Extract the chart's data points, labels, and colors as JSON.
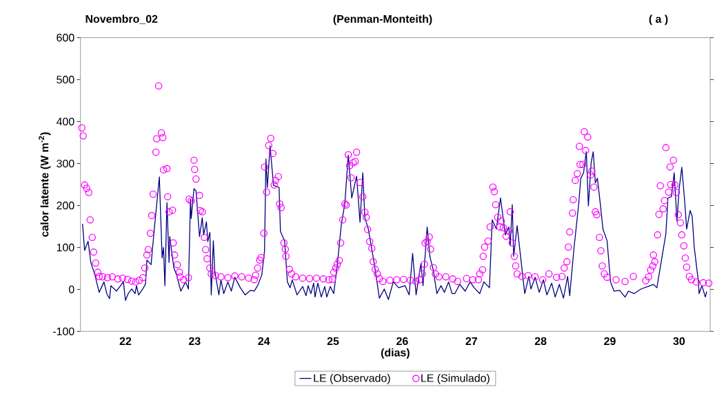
{
  "chart_data": {
    "type": "line",
    "title": "Novembro_02",
    "subtitle": "(Penman-Monteith)",
    "annotations": [
      "( a )"
    ],
    "xlabel": "(dias)",
    "ylabel": "calor latente (W m$^{-2}$)",
    "xlim": [
      21.35,
      30.45
    ],
    "xticks": [
      22,
      23,
      24,
      25,
      26,
      27,
      28,
      29,
      30
    ],
    "ylim": [
      -100,
      600
    ],
    "yticks": [
      -100,
      0,
      100,
      200,
      300,
      400,
      500,
      600
    ],
    "legend": "bottom",
    "line_style": "solid",
    "series": [
      {
        "name": "LE (Observado)",
        "color": "#000080",
        "x": [
          21.38,
          21.41,
          21.46,
          21.5,
          21.56,
          21.62,
          21.69,
          21.73,
          21.77,
          21.79,
          21.87,
          21.97,
          22.0,
          22.04,
          22.09,
          22.14,
          22.16,
          22.19,
          22.25,
          22.29,
          22.31,
          22.37,
          22.42,
          22.49,
          22.53,
          22.55,
          22.57,
          22.6,
          22.63,
          22.64,
          22.7,
          22.74,
          22.8,
          22.87,
          22.91,
          22.94,
          22.95,
          22.99,
          23.02,
          23.07,
          23.11,
          23.13,
          23.17,
          23.19,
          23.22,
          23.24,
          23.27,
          23.29,
          23.35,
          23.38,
          23.42,
          23.48,
          23.53,
          23.58,
          23.66,
          23.73,
          23.81,
          23.86,
          23.91,
          23.97,
          24.01,
          24.03,
          24.05,
          24.09,
          24.14,
          24.22,
          24.24,
          24.3,
          24.34,
          24.38,
          24.41,
          24.48,
          24.56,
          24.61,
          24.64,
          24.68,
          24.72,
          24.74,
          24.78,
          24.83,
          24.88,
          24.91,
          24.96,
          25.01,
          25.06,
          25.12,
          25.17,
          25.22,
          25.27,
          25.34,
          25.39,
          25.43,
          25.46,
          25.51,
          25.59,
          25.67,
          25.74,
          25.8,
          25.87,
          25.95,
          26.04,
          26.1,
          26.15,
          26.2,
          26.27,
          26.3,
          26.36,
          26.4,
          26.45,
          26.5,
          26.56,
          26.61,
          26.67,
          26.72,
          26.76,
          26.83,
          26.91,
          26.98,
          27.04,
          27.12,
          27.18,
          27.26,
          27.3,
          27.36,
          27.42,
          27.49,
          27.54,
          27.56,
          27.59,
          27.61,
          27.66,
          27.72,
          27.77,
          27.83,
          27.86,
          27.92,
          27.98,
          28.04,
          28.09,
          28.16,
          28.21,
          28.27,
          28.33,
          28.39,
          28.42,
          28.48,
          28.55,
          28.58,
          28.62,
          28.66,
          28.69,
          28.73,
          28.76,
          28.79,
          28.82,
          28.86,
          28.9,
          28.96,
          29.01,
          29.06,
          29.14,
          29.22,
          29.27,
          29.35,
          29.45,
          29.55,
          29.63,
          29.68,
          29.71,
          29.81,
          29.84,
          29.89,
          29.93,
          29.97,
          30.0,
          30.04,
          30.08,
          30.11,
          30.16,
          30.19,
          30.22,
          30.28,
          30.29,
          30.33,
          30.38,
          30.4
        ],
        "values": [
          156,
          93,
          115,
          64,
          34,
          -7,
          18,
          -10,
          -22,
          9,
          -4,
          18,
          -26,
          -10,
          1,
          -10,
          9,
          -13,
          1,
          13,
          70,
          59,
          149,
          268,
          75,
          100,
          9,
          207,
          64,
          126,
          51,
          34,
          -4,
          18,
          1,
          215,
          169,
          240,
          235,
          126,
          171,
          130,
          161,
          114,
          136,
          -13,
          116,
          45,
          -13,
          23,
          -10,
          18,
          -4,
          29,
          4,
          -13,
          -2,
          -4,
          9,
          34,
          92,
          311,
          243,
          342,
          248,
          243,
          138,
          116,
          18,
          4,
          23,
          -13,
          7,
          -15,
          9,
          -10,
          15,
          -18,
          15,
          -18,
          7,
          -18,
          7,
          -10,
          56,
          155,
          204,
          320,
          218,
          270,
          160,
          278,
          171,
          144,
          67,
          -21,
          1,
          -24,
          18,
          4,
          9,
          -13,
          86,
          -13,
          62,
          9,
          149,
          78,
          45,
          -10,
          9,
          -7,
          18,
          -10,
          -10,
          12,
          -4,
          18,
          4,
          -10,
          18,
          4,
          166,
          144,
          218,
          130,
          149,
          105,
          202,
          79,
          152,
          64,
          -10,
          31,
          1,
          29,
          -7,
          23,
          -13,
          15,
          -18,
          12,
          -21,
          31,
          -15,
          95,
          204,
          265,
          278,
          328,
          199,
          303,
          328,
          254,
          265,
          207,
          144,
          116,
          18,
          -4,
          -2,
          -18,
          -4,
          -10,
          1,
          7,
          12,
          4,
          34,
          133,
          218,
          221,
          278,
          163,
          237,
          291,
          213,
          144,
          188,
          174,
          100,
          18,
          -10,
          9,
          -18,
          -5
        ]
      },
      {
        "name": "LE (Simulado)",
        "type": "scatter",
        "marker": "circle",
        "color": "#ff00ff",
        "x": [
          21.37,
          21.39,
          21.41,
          21.44,
          21.47,
          21.49,
          21.52,
          21.54,
          21.57,
          21.6,
          21.62,
          21.67,
          21.74,
          21.81,
          21.89,
          21.96,
          22.03,
          22.09,
          22.15,
          22.2,
          22.25,
          22.28,
          22.31,
          22.33,
          22.36,
          22.38,
          22.4,
          22.44,
          22.45,
          22.48,
          22.52,
          22.54,
          22.55,
          22.6,
          22.61,
          22.63,
          22.68,
          22.69,
          22.71,
          22.75,
          22.78,
          22.79,
          22.84,
          22.91,
          22.92,
          22.95,
          22.99,
          23.0,
          23.02,
          23.07,
          23.08,
          23.11,
          23.14,
          23.16,
          23.18,
          23.22,
          23.24,
          23.3,
          23.38,
          23.48,
          23.58,
          23.68,
          23.78,
          23.86,
          23.88,
          23.91,
          23.94,
          23.96,
          24.0,
          24.01,
          24.04,
          24.07,
          24.1,
          24.13,
          24.15,
          24.17,
          24.21,
          24.23,
          24.25,
          24.29,
          24.31,
          24.32,
          24.37,
          24.4,
          24.46,
          24.56,
          24.66,
          24.76,
          24.86,
          24.94,
          24.99,
          25.01,
          25.04,
          25.06,
          25.09,
          25.11,
          25.14,
          25.17,
          25.19,
          25.22,
          25.24,
          25.26,
          25.29,
          25.32,
          25.34,
          25.39,
          25.43,
          25.46,
          25.48,
          25.5,
          25.53,
          25.56,
          25.58,
          25.61,
          25.64,
          25.67,
          25.72,
          25.82,
          25.92,
          26.02,
          26.12,
          26.2,
          26.25,
          26.29,
          26.32,
          26.33,
          26.36,
          26.39,
          26.41,
          26.45,
          26.48,
          26.53,
          26.63,
          26.73,
          26.8,
          26.93,
          27.02,
          27.1,
          27.12,
          27.16,
          27.17,
          27.19,
          27.24,
          27.27,
          27.31,
          27.33,
          27.35,
          27.38,
          27.41,
          27.43,
          27.46,
          27.5,
          27.54,
          27.56,
          27.59,
          27.62,
          27.64,
          27.66,
          27.73,
          27.82,
          27.92,
          28.03,
          28.12,
          28.23,
          28.31,
          28.34,
          28.38,
          28.4,
          28.42,
          28.46,
          28.47,
          28.5,
          28.53,
          28.56,
          28.57,
          28.61,
          28.63,
          28.65,
          28.68,
          28.72,
          28.74,
          28.77,
          28.79,
          28.81,
          28.85,
          28.87,
          28.89,
          28.92,
          28.96,
          29.09,
          29.22,
          29.34,
          29.52,
          29.56,
          29.59,
          29.62,
          29.63,
          29.65,
          29.69,
          29.71,
          29.73,
          29.77,
          29.79,
          29.81,
          29.85,
          29.87,
          29.88,
          29.92,
          29.94,
          29.96,
          29.99,
          30.02,
          30.04,
          30.07,
          30.09,
          30.11,
          30.15,
          30.18,
          30.25,
          30.35,
          30.43
        ],
        "values": [
          385,
          366,
          249,
          241,
          231,
          166,
          124,
          89,
          63,
          41,
          31,
          30,
          28,
          30,
          25,
          27,
          24,
          20,
          18,
          22,
          28,
          51,
          82,
          95,
          134,
          176,
          227,
          327,
          359,
          485,
          373,
          362,
          285,
          288,
          221,
          185,
          189,
          111,
          82,
          59,
          41,
          30,
          23,
          28,
          215,
          211,
          308,
          286,
          263,
          224,
          188,
          185,
          124,
          95,
          73,
          51,
          37,
          33,
          30,
          28,
          32,
          30,
          27,
          23,
          34,
          51,
          70,
          76,
          134,
          292,
          232,
          343,
          360,
          324,
          249,
          260,
          269,
          204,
          195,
          111,
          96,
          79,
          48,
          37,
          30,
          27,
          26,
          27,
          25,
          23,
          24,
          41,
          51,
          60,
          69,
          111,
          166,
          204,
          201,
          321,
          295,
          266,
          302,
          305,
          327,
          255,
          221,
          184,
          172,
          143,
          114,
          98,
          66,
          48,
          37,
          26,
          19,
          22,
          23,
          24,
          22,
          19,
          23,
          37,
          60,
          111,
          114,
          125,
          96,
          52,
          37,
          30,
          30,
          25,
          19,
          26,
          23,
          23,
          37,
          47,
          79,
          101,
          115,
          149,
          244,
          233,
          202,
          172,
          149,
          163,
          147,
          127,
          139,
          185,
          111,
          79,
          56,
          37,
          31,
          33,
          30,
          23,
          37,
          29,
          31,
          51,
          66,
          101,
          137,
          182,
          214,
          260,
          276,
          341,
          298,
          298,
          376,
          331,
          363,
          273,
          282,
          244,
          185,
          178,
          124,
          92,
          56,
          37,
          29,
          23,
          19,
          31,
          21,
          30,
          46,
          56,
          82,
          66,
          130,
          179,
          247,
          192,
          212,
          338,
          232,
          292,
          250,
          308,
          249,
          231,
          178,
          159,
          130,
          104,
          75,
          53,
          31,
          23,
          18,
          16,
          15
        ]
      }
    ]
  }
}
